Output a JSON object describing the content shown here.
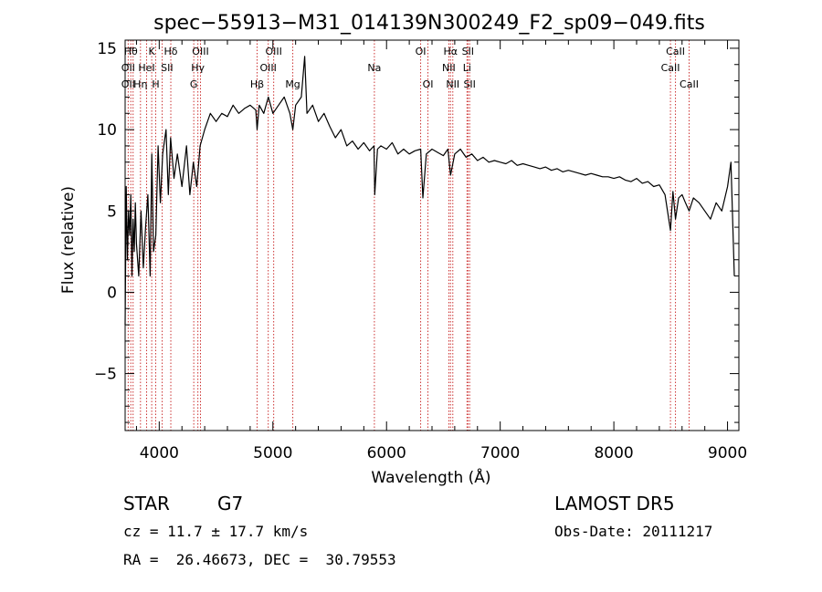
{
  "chart_data": {
    "type": "line",
    "title": "spec−55913−M31_014139N300249_F2_sp09−049.fits",
    "xlabel": "Wavelength (Å)",
    "ylabel": "Flux (relative)",
    "xlim": [
      3700,
      9100
    ],
    "ylim": [
      -8.5,
      15.5
    ],
    "x_ticks": [
      4000,
      5000,
      6000,
      7000,
      8000,
      9000
    ],
    "x_tick_labels": [
      "4000",
      "5000",
      "6000",
      "7000",
      "8000",
      "9000"
    ],
    "y_ticks": [
      -5,
      0,
      5,
      10,
      15
    ],
    "y_tick_labels": [
      "−5",
      "0",
      "5",
      "10",
      "15"
    ],
    "grid": false,
    "series": [
      {
        "color": "#000000",
        "x": [
          3700,
          3710,
          3720,
          3730,
          3740,
          3750,
          3760,
          3770,
          3780,
          3790,
          3800,
          3820,
          3840,
          3860,
          3880,
          3900,
          3920,
          3935,
          3950,
          3970,
          3990,
          4010,
          4030,
          4060,
          4080,
          4100,
          4130,
          4160,
          4200,
          4240,
          4270,
          4300,
          4330,
          4360,
          4400,
          4450,
          4500,
          4550,
          4600,
          4650,
          4700,
          4750,
          4800,
          4850,
          4861,
          4880,
          4920,
          4960,
          5000,
          5050,
          5100,
          5150,
          5175,
          5200,
          5250,
          5280,
          5300,
          5350,
          5400,
          5450,
          5500,
          5550,
          5600,
          5650,
          5700,
          5750,
          5800,
          5850,
          5890,
          5896,
          5920,
          5950,
          6000,
          6050,
          6100,
          6150,
          6200,
          6250,
          6300,
          6320,
          6350,
          6400,
          6450,
          6500,
          6540,
          6563,
          6600,
          6650,
          6700,
          6750,
          6800,
          6850,
          6900,
          6950,
          7000,
          7050,
          7100,
          7150,
          7200,
          7250,
          7300,
          7350,
          7400,
          7450,
          7500,
          7550,
          7600,
          7650,
          7700,
          7750,
          7800,
          7850,
          7900,
          7950,
          8000,
          8050,
          8100,
          8150,
          8200,
          8250,
          8300,
          8350,
          8400,
          8450,
          8498,
          8520,
          8542,
          8570,
          8600,
          8630,
          8662,
          8700,
          8750,
          8800,
          8850,
          8900,
          8950,
          9000,
          9030,
          9060
        ],
        "y": [
          -2.0,
          6.5,
          2.0,
          5.0,
          3.5,
          6.0,
          1.0,
          4.5,
          2.5,
          5.5,
          3.0,
          1.0,
          5.0,
          1.5,
          4.0,
          6.0,
          1.0,
          8.5,
          2.5,
          3.5,
          9.0,
          5.5,
          8.5,
          10.0,
          6.0,
          9.5,
          7.0,
          8.5,
          6.5,
          9.0,
          6.0,
          8.0,
          6.5,
          9.0,
          10.0,
          11.0,
          10.5,
          11.0,
          10.8,
          11.5,
          11.0,
          11.3,
          11.5,
          11.2,
          10.0,
          11.5,
          11.0,
          12.0,
          11.0,
          11.5,
          12.0,
          11.0,
          10.0,
          11.5,
          12.0,
          14.5,
          11.0,
          11.5,
          10.5,
          11.0,
          10.2,
          9.5,
          10.0,
          9.0,
          9.3,
          8.8,
          9.2,
          8.7,
          9.0,
          6.0,
          8.8,
          9.0,
          8.8,
          9.2,
          8.5,
          8.8,
          8.5,
          8.7,
          8.8,
          5.8,
          8.5,
          8.8,
          8.6,
          8.4,
          8.8,
          7.2,
          8.5,
          8.8,
          8.3,
          8.5,
          8.1,
          8.3,
          8.0,
          8.1,
          8.0,
          7.9,
          8.1,
          7.8,
          7.9,
          7.8,
          7.7,
          7.6,
          7.7,
          7.5,
          7.6,
          7.4,
          7.5,
          7.4,
          7.3,
          7.2,
          7.3,
          7.2,
          7.1,
          7.1,
          7.0,
          7.1,
          6.9,
          6.8,
          7.0,
          6.7,
          6.8,
          6.5,
          6.6,
          6.0,
          3.8,
          6.2,
          4.5,
          5.8,
          6.0,
          5.5,
          5.0,
          5.8,
          5.5,
          5.0,
          4.5,
          5.5,
          5.0,
          6.5,
          8.0,
          1.0
        ]
      }
    ],
    "vlines": {
      "color": "#cc3333",
      "x": [
        3727,
        3750,
        3770,
        3835,
        3889,
        3934,
        3969,
        4026,
        4102,
        4304,
        4340,
        4363,
        4861,
        4959,
        5007,
        5175,
        5893,
        6300,
        6364,
        6548,
        6563,
        6583,
        6708,
        6716,
        6731,
        8498,
        8542,
        8662
      ]
    },
    "line_labels": [
      {
        "text": "Hθ",
        "x": 3750,
        "row": 1
      },
      {
        "text": "K",
        "x": 3934,
        "row": 1
      },
      {
        "text": "Hδ",
        "x": 4102,
        "row": 1
      },
      {
        "text": "OIII",
        "x": 4363,
        "row": 1
      },
      {
        "text": "OIII",
        "x": 5007,
        "row": 1
      },
      {
        "text": "OI",
        "x": 6300,
        "row": 1
      },
      {
        "text": "Hα",
        "x": 6563,
        "row": 1
      },
      {
        "text": "SII",
        "x": 6716,
        "row": 1
      },
      {
        "text": "CaII",
        "x": 8542,
        "row": 1
      },
      {
        "text": "OII",
        "x": 3727,
        "row": 2
      },
      {
        "text": "HeI",
        "x": 3889,
        "row": 2
      },
      {
        "text": "SII",
        "x": 4069,
        "row": 2
      },
      {
        "text": "Hγ",
        "x": 4340,
        "row": 2
      },
      {
        "text": "OIII",
        "x": 4959,
        "row": 2
      },
      {
        "text": "Na",
        "x": 5893,
        "row": 2
      },
      {
        "text": "NII",
        "x": 6548,
        "row": 2
      },
      {
        "text": "Li",
        "x": 6708,
        "row": 2
      },
      {
        "text": "CaII",
        "x": 8498,
        "row": 2
      },
      {
        "text": "OII",
        "x": 3727,
        "row": 3
      },
      {
        "text": "Hη",
        "x": 3835,
        "row": 3
      },
      {
        "text": "H",
        "x": 3969,
        "row": 3
      },
      {
        "text": "G",
        "x": 4304,
        "row": 3
      },
      {
        "text": "Hβ",
        "x": 4861,
        "row": 3
      },
      {
        "text": "Mg",
        "x": 5175,
        "row": 3
      },
      {
        "text": "OI",
        "x": 6364,
        "row": 3
      },
      {
        "text": "NII",
        "x": 6583,
        "row": 3
      },
      {
        "text": "SII",
        "x": 6731,
        "row": 3
      },
      {
        "text": "CaII",
        "x": 8662,
        "row": 3
      }
    ]
  },
  "footer": {
    "object_class": "STAR",
    "subclass": "G7",
    "survey": "LAMOST DR5",
    "redshift": "cz = 11.7 ± 17.7 km/s",
    "obs_date": "Obs-Date: 20111217",
    "coords": "RA =  26.46673, DEC =  30.79553"
  }
}
